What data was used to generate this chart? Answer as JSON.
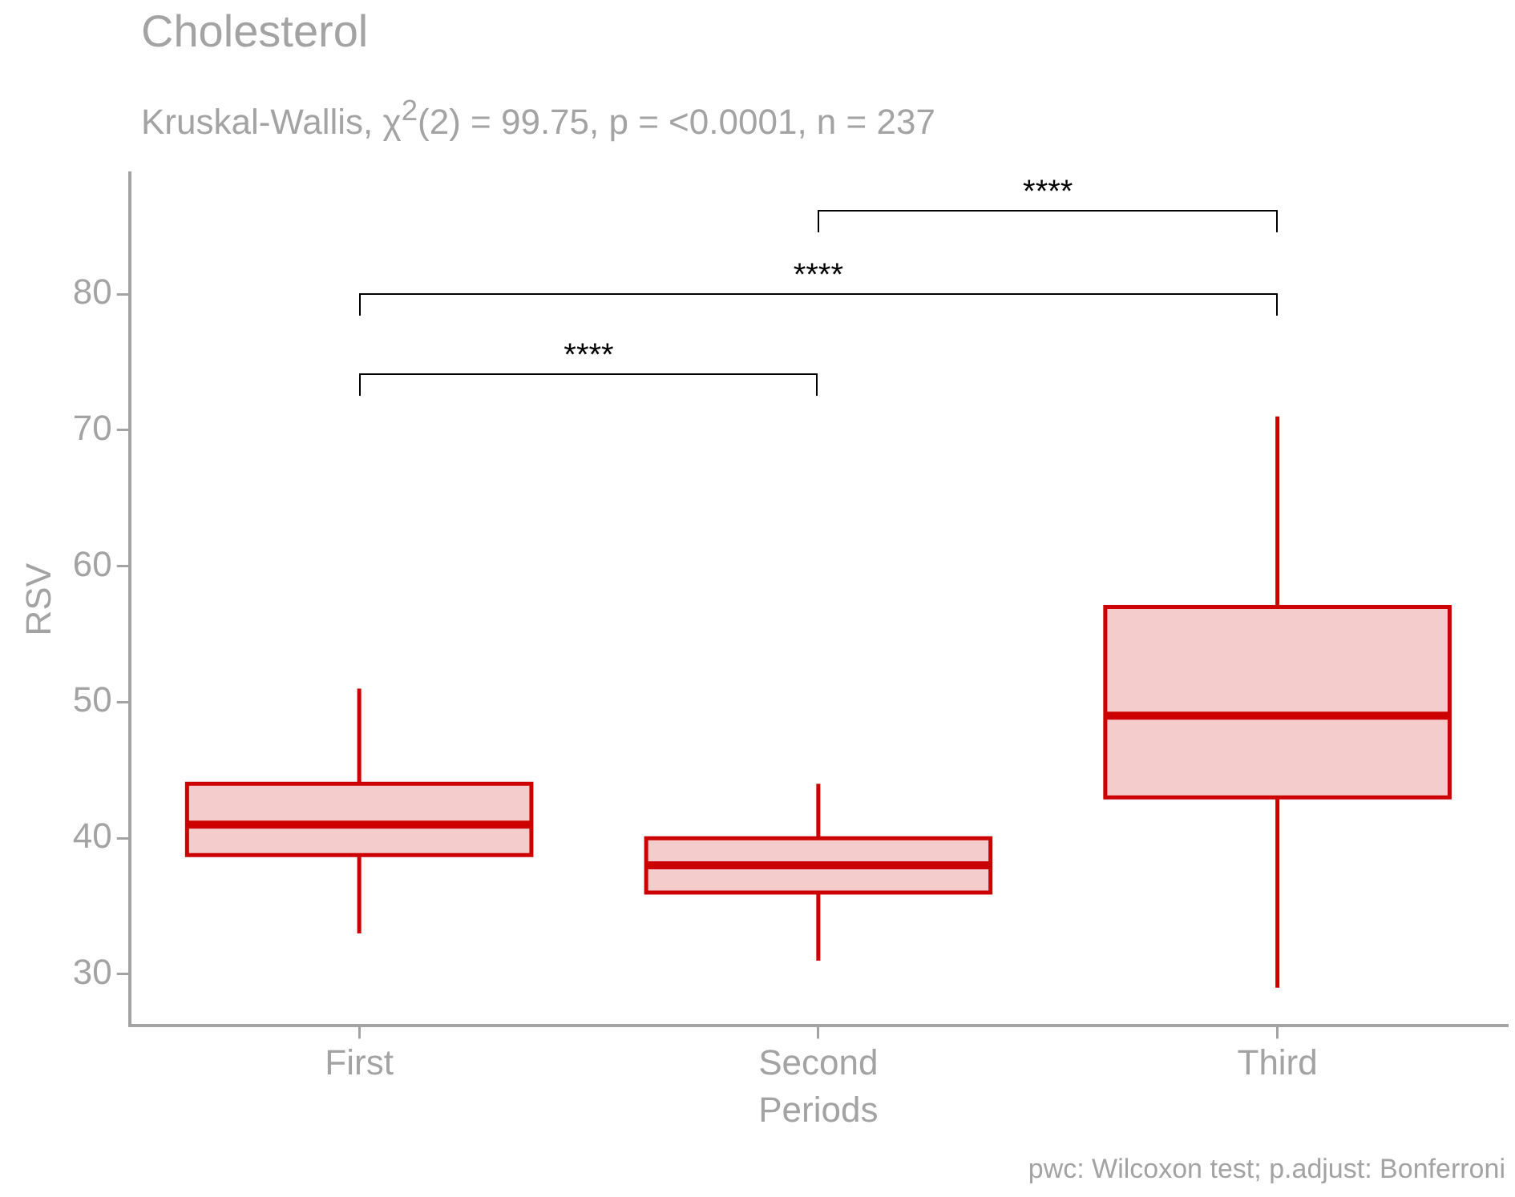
{
  "chart_data": {
    "type": "box",
    "title": "Cholesterol",
    "subtitle": "Kruskal-Wallis, χ$^{2}$(2) = 99.75, p = <0.0001, n = 237",
    "xlabel": "Periods",
    "ylabel": "RSV",
    "categories": [
      "First",
      "Second",
      "Third"
    ],
    "series": [
      {
        "color": "#cc0000",
        "boxes": [
          {
            "low": 33,
            "q1": 38.75,
            "median": 41,
            "q3": 44,
            "high": 51
          },
          {
            "low": 31,
            "q1": 36,
            "median": 38,
            "q3": 40,
            "high": 44
          },
          {
            "low": 29,
            "q1": 43,
            "median": 49,
            "q3": 57,
            "high": 71
          }
        ]
      }
    ],
    "ylim": [
      26.2,
      88.9
    ],
    "yticks": [
      30,
      40,
      50,
      60,
      70,
      80
    ],
    "legend": false,
    "annotations": [
      "****",
      "****",
      "****",
      "pwc: Wilcoxon test; p.adjust: Bonferroni"
    ]
  }
}
